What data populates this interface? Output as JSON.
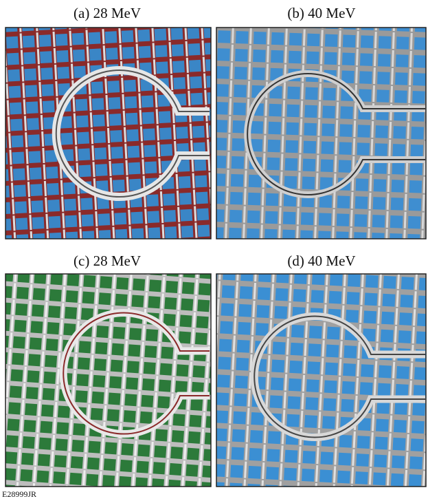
{
  "panels": [
    {
      "label": "(a) 28 MeV"
    },
    {
      "label": "(b) 40 MeV"
    },
    {
      "label": "(c) 28 MeV"
    },
    {
      "label": "(d) 40 MeV"
    }
  ],
  "footer": "E28999JR"
}
